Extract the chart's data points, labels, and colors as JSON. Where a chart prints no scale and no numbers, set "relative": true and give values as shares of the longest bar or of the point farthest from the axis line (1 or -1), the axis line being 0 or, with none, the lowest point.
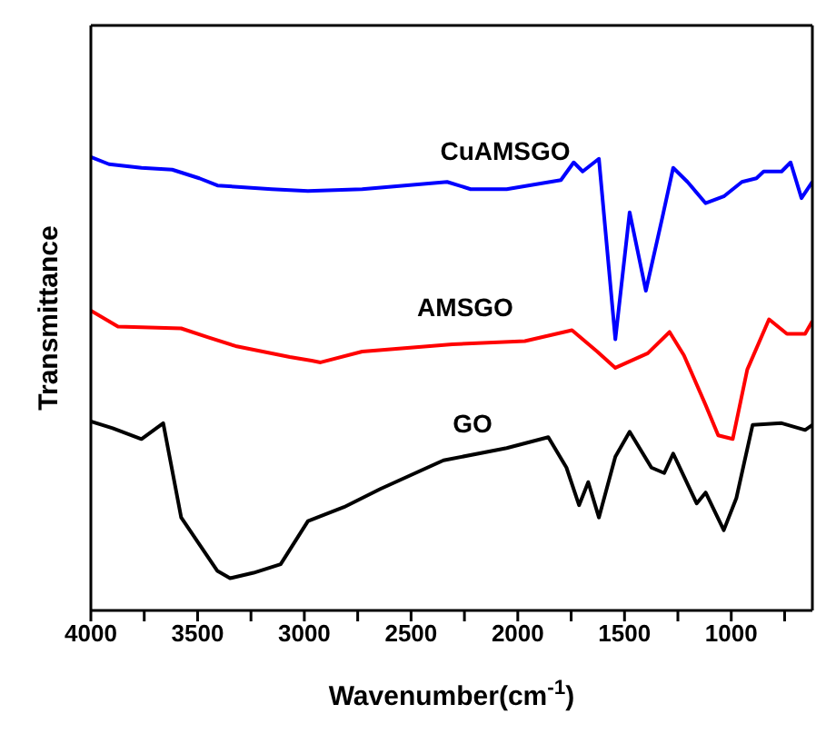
{
  "chart_data": {
    "type": "line",
    "relative": true,
    "xlabel": "Wavenumber(cm$^{-1}$)",
    "ylabel": "Transmittance",
    "xlim": [
      4000,
      620
    ],
    "xticks": [
      4000,
      {
        "value": 3750,
        "label": null
      },
      3500,
      {
        "value": 3250,
        "label": null
      },
      3000,
      {
        "value": 2750,
        "label": null
      },
      2500,
      {
        "value": 2250,
        "label": null
      },
      2000,
      {
        "value": 1750,
        "label": null
      },
      1500,
      {
        "value": 1250,
        "label": null
      },
      1000,
      {
        "value": 750,
        "label": null
      }
    ],
    "line_style": "solid",
    "series": [
      {
        "name": "CuAMSGO",
        "color": "#0000ff",
        "x": [
          4000,
          3915,
          3763,
          3619,
          3492,
          3407,
          3153,
          2983,
          2729,
          2331,
          2221,
          2052,
          1798,
          1738,
          1696,
          1620,
          1543,
          1476,
          1400,
          1323,
          1272,
          1205,
          1120,
          1035,
          950,
          882,
          848,
          764,
          722,
          671,
          620
        ],
        "values": [
          1.0,
          0.984,
          0.976,
          0.972,
          0.953,
          0.937,
          0.929,
          0.925,
          0.929,
          0.945,
          0.929,
          0.929,
          0.949,
          0.988,
          0.968,
          0.996,
          0.598,
          0.878,
          0.705,
          0.866,
          0.976,
          0.945,
          0.898,
          0.913,
          0.945,
          0.953,
          0.968,
          0.968,
          0.988,
          0.909,
          0.945
        ]
      },
      {
        "name": "AMSGO",
        "color": "#ff0000",
        "x": [
          4000,
          3873,
          3577,
          3450,
          3322,
          3068,
          2966,
          2924,
          2729,
          2306,
          1967,
          1746,
          1628,
          1543,
          1391,
          1289,
          1222,
          1120,
          1061,
          993,
          925,
          823,
          739,
          654,
          620
        ],
        "values": [
          0.661,
          0.626,
          0.622,
          0.602,
          0.583,
          0.559,
          0.551,
          0.547,
          0.571,
          0.587,
          0.594,
          0.618,
          0.571,
          0.535,
          0.567,
          0.614,
          0.563,
          0.453,
          0.386,
          0.378,
          0.531,
          0.642,
          0.61,
          0.61,
          0.638
        ]
      },
      {
        "name": "GO",
        "color": "#000000",
        "x": [
          4000,
          3898,
          3763,
          3661,
          3577,
          3492,
          3407,
          3348,
          3238,
          3111,
          2983,
          2814,
          2644,
          2348,
          2052,
          1857,
          1772,
          1713,
          1670,
          1620,
          1543,
          1476,
          1374,
          1314,
          1272,
          1162,
          1120,
          1035,
          976,
          900,
          764,
          654,
          620
        ],
        "values": [
          0.417,
          0.402,
          0.378,
          0.413,
          0.205,
          0.146,
          0.087,
          0.071,
          0.083,
          0.102,
          0.197,
          0.228,
          0.268,
          0.331,
          0.358,
          0.382,
          0.315,
          0.232,
          0.283,
          0.205,
          0.339,
          0.394,
          0.315,
          0.303,
          0.346,
          0.236,
          0.26,
          0.177,
          0.248,
          0.409,
          0.413,
          0.398,
          0.409
        ]
      }
    ]
  }
}
